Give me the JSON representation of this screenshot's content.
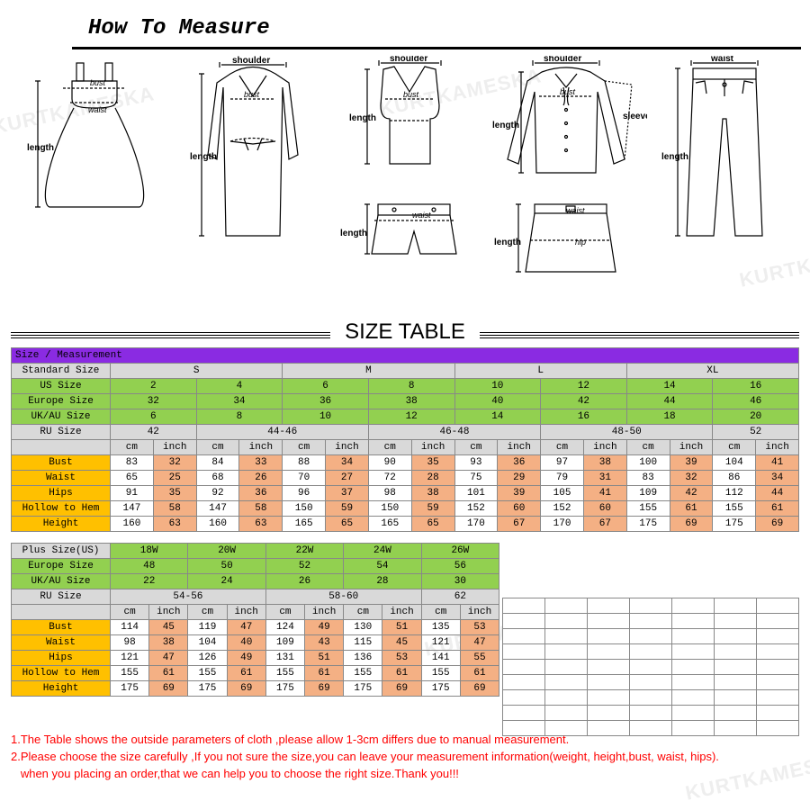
{
  "header": {
    "title": "How To Measure"
  },
  "watermark": "KURTKAMESKA",
  "size_table_title": "SIZE TABLE",
  "diagram_labels": {
    "bust": "bust",
    "waist": "waist",
    "length": "length",
    "shoulder": "shoulder",
    "sleeve": "sleeve",
    "hip": "hip"
  },
  "std": {
    "header": "Size / Measurement",
    "row_labels": {
      "standard": "Standard Size",
      "us": "US Size",
      "eu": "Europe Size",
      "ukau": "UK/AU Size",
      "ru": "RU Size",
      "bust": "Bust",
      "waist": "Waist",
      "hips": "Hips",
      "hollow": "Hollow to Hem",
      "height": "Height"
    },
    "unit_cm": "cm",
    "unit_in": "inch",
    "standard": [
      "S",
      "S",
      "M",
      "M",
      "L",
      "L",
      "XL",
      "XL"
    ],
    "standard_span": [
      2,
      2,
      2,
      2,
      2,
      2,
      2,
      2
    ],
    "standard_labels": [
      "S",
      "M",
      "L",
      "XL"
    ],
    "us": [
      "2",
      "4",
      "6",
      "8",
      "10",
      "12",
      "14",
      "16"
    ],
    "eu": [
      "32",
      "34",
      "36",
      "38",
      "40",
      "42",
      "44",
      "46"
    ],
    "ukau": [
      "6",
      "8",
      "10",
      "12",
      "14",
      "16",
      "18",
      "20"
    ],
    "ru_labels": [
      "42",
      "44-46",
      "46-48",
      "48-50",
      "52"
    ],
    "ru_spans": [
      2,
      4,
      4,
      4,
      2
    ],
    "bust_cm": [
      "83",
      "84",
      "88",
      "90",
      "93",
      "97",
      "100",
      "104"
    ],
    "bust_in": [
      "32",
      "33",
      "34",
      "35",
      "36",
      "38",
      "39",
      "41"
    ],
    "waist_cm": [
      "65",
      "68",
      "70",
      "72",
      "75",
      "79",
      "83",
      "86"
    ],
    "waist_in": [
      "25",
      "26",
      "27",
      "28",
      "29",
      "31",
      "32",
      "34"
    ],
    "hips_cm": [
      "91",
      "92",
      "96",
      "98",
      "101",
      "105",
      "109",
      "112"
    ],
    "hips_in": [
      "35",
      "36",
      "37",
      "38",
      "39",
      "41",
      "42",
      "44"
    ],
    "hollow_cm": [
      "147",
      "147",
      "150",
      "150",
      "152",
      "152",
      "155",
      "155"
    ],
    "hollow_in": [
      "58",
      "58",
      "59",
      "59",
      "60",
      "60",
      "61",
      "61"
    ],
    "height_cm": [
      "160",
      "160",
      "165",
      "165",
      "170",
      "170",
      "175",
      "175"
    ],
    "height_in": [
      "63",
      "63",
      "65",
      "65",
      "67",
      "67",
      "69",
      "69"
    ]
  },
  "plus": {
    "row_labels": {
      "plus": "Plus Size(US)",
      "eu": "Europe Size",
      "ukau": "UK/AU Size",
      "ru": "RU Size",
      "bust": "Bust",
      "waist": "Waist",
      "hips": "Hips",
      "hollow": "Hollow to Hem",
      "height": "Height"
    },
    "sizes": [
      "18W",
      "20W",
      "22W",
      "24W",
      "26W"
    ],
    "eu": [
      "48",
      "50",
      "52",
      "54",
      "56"
    ],
    "ukau": [
      "22",
      "24",
      "26",
      "28",
      "30"
    ],
    "ru_labels": [
      "54-56",
      "58-60",
      "62"
    ],
    "ru_spans": [
      4,
      4,
      2
    ],
    "bust_cm": [
      "114",
      "119",
      "124",
      "130",
      "135"
    ],
    "bust_in": [
      "45",
      "47",
      "49",
      "51",
      "53"
    ],
    "waist_cm": [
      "98",
      "104",
      "109",
      "115",
      "121"
    ],
    "waist_in": [
      "38",
      "40",
      "43",
      "45",
      "47"
    ],
    "hips_cm": [
      "121",
      "126",
      "131",
      "136",
      "141"
    ],
    "hips_in": [
      "47",
      "49",
      "51",
      "53",
      "55"
    ],
    "hollow_cm": [
      "155",
      "155",
      "155",
      "155",
      "155"
    ],
    "hollow_in": [
      "61",
      "61",
      "61",
      "61",
      "61"
    ],
    "height_cm": [
      "175",
      "175",
      "175",
      "175",
      "175"
    ],
    "height_in": [
      "69",
      "69",
      "69",
      "69",
      "69"
    ]
  },
  "notes": {
    "n1": "1.The Table shows the outside parameters of cloth ,please allow 1-3cm differs due to manual measurement.",
    "n2": "2.Please choose the size carefully ,If you not sure the size,you can leave your measurement information(weight, height,bust, waist, hips).",
    "n3": "   when you placing an order,that we can help you to choose the right size.Thank you!!!"
  },
  "colors": {
    "purple": "#8a2be2",
    "grey": "#d9d9d9",
    "green": "#92d050",
    "orange": "#ffc000",
    "peach": "#f4b084",
    "note": "#ff0000",
    "border": "#888888"
  }
}
